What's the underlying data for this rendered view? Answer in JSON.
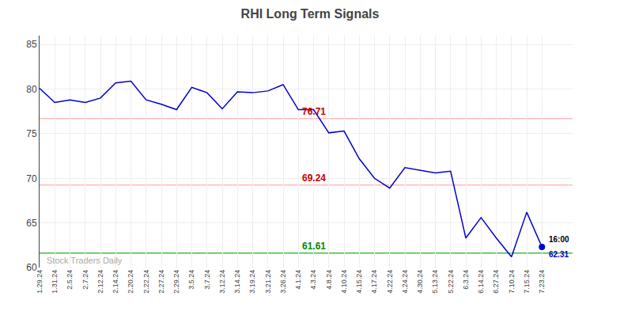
{
  "chart_data": {
    "type": "line",
    "title": "RHI Long Term Signals",
    "categories": [
      "1.29.24",
      "1.31.24",
      "2.5.24",
      "2.7.24",
      "2.12.24",
      "2.14.24",
      "2.20.24",
      "2.22.24",
      "2.27.24",
      "2.29.24",
      "3.5.24",
      "3.7.24",
      "3.12.24",
      "3.14.24",
      "3.19.24",
      "3.21.24",
      "3.26.24",
      "4.1.24",
      "4.3.24",
      "4.8.24",
      "4.10.24",
      "4.15.24",
      "4.17.24",
      "4.22.24",
      "4.24.24",
      "4.30.24",
      "5.13.24",
      "5.22.24",
      "6.3.24",
      "6.14.24",
      "6.27.24",
      "7.10.24",
      "7.15.24",
      "7.23.24"
    ],
    "values": [
      80.1,
      78.5,
      78.8,
      78.5,
      79.0,
      80.7,
      80.9,
      78.8,
      78.3,
      77.7,
      80.2,
      79.6,
      77.8,
      79.7,
      79.6,
      79.8,
      80.5,
      77.7,
      77.7,
      75.1,
      75.3,
      72.2,
      70.0,
      68.9,
      71.2,
      70.9,
      70.6,
      70.8,
      63.3,
      65.6,
      63.3,
      61.2,
      66.2,
      62.31
    ],
    "color": "#0000cc",
    "ylim": [
      60,
      86
    ],
    "yticks": [
      60,
      65,
      70,
      75,
      80,
      85
    ],
    "grid": true,
    "hlines": [
      {
        "value": 76.71,
        "color": "#ffbbbb",
        "label": "76.71",
        "label_color": "#cc0000"
      },
      {
        "value": 69.24,
        "color": "#ffbbbb",
        "label": "69.24",
        "label_color": "#cc0000"
      },
      {
        "value": 61.61,
        "color": "#44bb44",
        "label": "61.61",
        "label_color": "#008800"
      }
    ],
    "end_point": {
      "time_label": "16:00",
      "time_label_color": "#000000",
      "value_label": "62.31",
      "color": "#0000cc"
    },
    "watermark": "Stock Traders Daily",
    "watermark_color": "#aaaaaa"
  }
}
